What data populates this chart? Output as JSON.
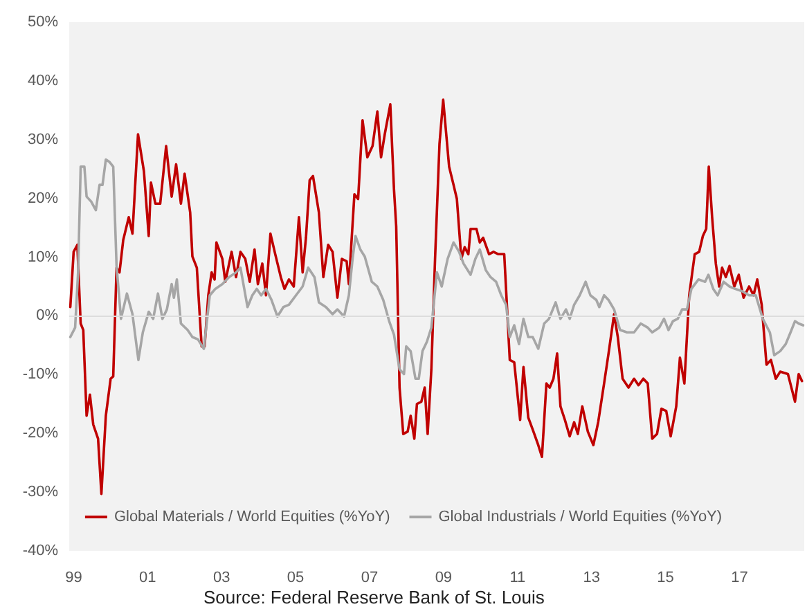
{
  "chart_data": {
    "type": "line",
    "xlim": [
      1998.88,
      2018.75
    ],
    "ylim": [
      -40,
      50
    ],
    "xticks": [
      {
        "value": 1999,
        "label": "99"
      },
      {
        "value": 2001,
        "label": "01"
      },
      {
        "value": 2003,
        "label": "03"
      },
      {
        "value": 2005,
        "label": "05"
      },
      {
        "value": 2007,
        "label": "07"
      },
      {
        "value": 2009,
        "label": "09"
      },
      {
        "value": 2011,
        "label": "11"
      },
      {
        "value": 2013,
        "label": "13"
      },
      {
        "value": 2015,
        "label": "15"
      },
      {
        "value": 2017,
        "label": "17"
      }
    ],
    "yticks": [
      {
        "value": -40,
        "label": "-40%"
      },
      {
        "value": -30,
        "label": "-30%"
      },
      {
        "value": -20,
        "label": "-20%"
      },
      {
        "value": -10,
        "label": "-10%"
      },
      {
        "value": 0,
        "label": "0%"
      },
      {
        "value": 10,
        "label": "10%"
      },
      {
        "value": 20,
        "label": "20%"
      },
      {
        "value": 30,
        "label": "30%"
      },
      {
        "value": 40,
        "label": "40%"
      },
      {
        "value": 50,
        "label": "50%"
      }
    ],
    "grid": false,
    "legend": "bottom",
    "marker": "none",
    "line_style": "solid",
    "ref_lines": [
      {
        "axis": "y",
        "value": 0,
        "color": "#dcdcdc"
      }
    ],
    "annotations": [
      "Source: Federal Reserve Bank of St. Louis"
    ],
    "series": [
      {
        "name": "Global Materials / World Equities (%YoY)",
        "color": "#c00000",
        "x": [
          1998.91,
          1999.0,
          1999.1,
          1999.19,
          1999.26,
          1999.35,
          1999.44,
          1999.53,
          1999.66,
          1999.75,
          1999.87,
          2000.0,
          2000.07,
          2000.16,
          2000.24,
          2000.34,
          2000.49,
          2000.59,
          2000.74,
          2000.9,
          2001.03,
          2001.09,
          2001.21,
          2001.34,
          2001.5,
          2001.65,
          2001.77,
          2001.9,
          2002.0,
          2002.15,
          2002.21,
          2002.33,
          2002.46,
          2002.54,
          2002.64,
          2002.73,
          2002.81,
          2002.86,
          2003.02,
          2003.1,
          2003.27,
          2003.39,
          2003.51,
          2003.64,
          2003.76,
          2003.89,
          2003.98,
          2004.1,
          2004.2,
          2004.32,
          2004.45,
          2004.6,
          2004.7,
          2004.82,
          2004.95,
          2005.09,
          2005.19,
          2005.28,
          2005.38,
          2005.47,
          2005.63,
          2005.75,
          2005.88,
          2006.0,
          2006.13,
          2006.25,
          2006.38,
          2006.44,
          2006.59,
          2006.69,
          2006.81,
          2006.94,
          2007.08,
          2007.21,
          2007.31,
          2007.41,
          2007.56,
          2007.66,
          2007.72,
          2007.81,
          2007.91,
          2008.03,
          2008.11,
          2008.21,
          2008.28,
          2008.4,
          2008.49,
          2008.57,
          2008.67,
          2008.77,
          2008.89,
          2008.99,
          2009.15,
          2009.27,
          2009.36,
          2009.48,
          2009.57,
          2009.67,
          2009.73,
          2009.89,
          2009.98,
          2010.07,
          2010.23,
          2010.35,
          2010.48,
          2010.64,
          2010.79,
          2010.91,
          2011.07,
          2011.16,
          2011.29,
          2011.43,
          2011.56,
          2011.66,
          2011.78,
          2011.87,
          2011.97,
          2012.07,
          2012.16,
          2012.28,
          2012.41,
          2012.53,
          2012.63,
          2012.75,
          2012.9,
          2013.05,
          2013.18,
          2013.34,
          2013.46,
          2013.61,
          2013.71,
          2013.84,
          2014.0,
          2014.15,
          2014.27,
          2014.4,
          2014.52,
          2014.64,
          2014.77,
          2014.89,
          2015.02,
          2015.14,
          2015.29,
          2015.39,
          2015.51,
          2015.64,
          2015.79,
          2015.91,
          2016.01,
          2016.1,
          2016.17,
          2016.26,
          2016.36,
          2016.45,
          2016.53,
          2016.63,
          2016.73,
          2016.86,
          2016.98,
          2017.11,
          2017.26,
          2017.38,
          2017.48,
          2017.6,
          2017.73,
          2017.85,
          2017.98,
          2018.1,
          2018.31,
          2018.5,
          2018.6,
          2018.69
        ],
        "values": [
          1.5,
          10.9,
          12.1,
          -1.3,
          -2.4,
          -17,
          -13.4,
          -18.5,
          -20.9,
          -30.3,
          -17,
          -10.7,
          -10.3,
          8.2,
          7.4,
          12.9,
          16.8,
          14,
          30.9,
          24.6,
          13.6,
          22.7,
          19.1,
          19.1,
          28.9,
          20.3,
          25.8,
          19.1,
          24.2,
          17.6,
          10.1,
          8.2,
          -5.2,
          -5.2,
          3.5,
          7.4,
          6.2,
          12.5,
          9.7,
          5.8,
          10.9,
          6.6,
          10.9,
          9.7,
          5.8,
          11.3,
          5.4,
          8.9,
          3.5,
          14,
          10.5,
          6.6,
          4.6,
          6.2,
          5,
          16.8,
          7.4,
          13.3,
          23.1,
          23.8,
          17.6,
          6.6,
          12.1,
          10.9,
          3.1,
          9.7,
          9.3,
          5.4,
          20.7,
          19.9,
          33.3,
          27,
          28.9,
          34.8,
          27,
          30.9,
          36,
          21.5,
          15.2,
          -12.2,
          -20.1,
          -19.7,
          -17,
          -20.9,
          -15,
          -14.6,
          -12.2,
          -20.1,
          -9.1,
          9.7,
          29.3,
          36.8,
          25.4,
          22.3,
          19.9,
          9.7,
          11.7,
          10.5,
          14.8,
          14.8,
          12.5,
          13.3,
          10.5,
          10.9,
          10.5,
          10.5,
          -7.5,
          -7.9,
          -17.7,
          -8.7,
          -17.3,
          -19.7,
          -22,
          -24,
          -11.5,
          -12.2,
          -10.7,
          -6.4,
          -15.4,
          -17.7,
          -20.5,
          -18.1,
          -20.1,
          -15.4,
          -19.7,
          -22,
          -18.1,
          -11.5,
          -6.4,
          0.3,
          -3.6,
          -10.7,
          -12.2,
          -10.7,
          -11.8,
          -10.7,
          -11.5,
          -20.9,
          -20.1,
          -15.8,
          -16.2,
          -20.5,
          -15.4,
          -7.1,
          -11.5,
          3.5,
          10.5,
          10.9,
          13.6,
          14.8,
          25.4,
          16.8,
          8.9,
          5,
          8.2,
          6.6,
          8.5,
          5,
          7,
          3.1,
          5,
          3.5,
          6.2,
          1.9,
          -8.3,
          -7.5,
          -10.7,
          -9.5,
          -9.9,
          -14.6,
          -9.9,
          -11.1
        ]
      },
      {
        "name": "Global Industrials / World Equities (%YoY)",
        "color": "#a6a6a6",
        "x": [
          1998.91,
          1999.04,
          1999.12,
          1999.19,
          1999.29,
          1999.35,
          1999.47,
          1999.6,
          1999.7,
          1999.78,
          1999.87,
          1999.97,
          2000.07,
          2000.16,
          2000.28,
          2000.44,
          2000.59,
          2000.75,
          2000.87,
          2001.03,
          2001.15,
          2001.28,
          2001.4,
          2001.52,
          2001.65,
          2001.71,
          2001.79,
          2001.9,
          2002.08,
          2002.21,
          2002.36,
          2002.52,
          2002.68,
          2002.83,
          2003.02,
          2003.2,
          2003.39,
          2003.51,
          2003.7,
          2003.83,
          2003.95,
          2004.07,
          2004.2,
          2004.35,
          2004.51,
          2004.67,
          2004.82,
          2005.01,
          2005.19,
          2005.34,
          2005.51,
          2005.63,
          2005.82,
          2006.0,
          2006.13,
          2006.31,
          2006.44,
          2006.54,
          2006.62,
          2006.75,
          2006.87,
          2007.06,
          2007.21,
          2007.37,
          2007.53,
          2007.66,
          2007.81,
          2007.93,
          2007.99,
          2008.11,
          2008.24,
          2008.33,
          2008.43,
          2008.55,
          2008.67,
          2008.82,
          2008.95,
          2009.11,
          2009.27,
          2009.42,
          2009.54,
          2009.73,
          2009.86,
          2009.98,
          2010.14,
          2010.27,
          2010.42,
          2010.56,
          2010.69,
          2010.79,
          2010.91,
          2011.04,
          2011.16,
          2011.29,
          2011.41,
          2011.56,
          2011.72,
          2011.85,
          2012.03,
          2012.16,
          2012.31,
          2012.41,
          2012.53,
          2012.68,
          2012.84,
          2012.97,
          2013.13,
          2013.21,
          2013.34,
          2013.46,
          2013.61,
          2013.77,
          2013.96,
          2014.15,
          2014.33,
          2014.52,
          2014.64,
          2014.83,
          2014.96,
          2015.08,
          2015.2,
          2015.33,
          2015.45,
          2015.58,
          2015.7,
          2015.89,
          2016.07,
          2016.16,
          2016.29,
          2016.41,
          2016.57,
          2016.73,
          2016.88,
          2017.07,
          2017.26,
          2017.44,
          2017.63,
          2017.82,
          2017.94,
          2018.1,
          2018.25,
          2018.38,
          2018.5,
          2018.6,
          2018.72
        ],
        "values": [
          -3.6,
          -2,
          7.4,
          25.4,
          25.4,
          20.3,
          19.5,
          18,
          22.3,
          22.3,
          26.6,
          26.2,
          25.4,
          8.5,
          -0.5,
          3.8,
          0.3,
          -7.5,
          -2.8,
          0.7,
          -0.5,
          3.8,
          -0.5,
          1.1,
          5.4,
          3.1,
          6.2,
          -1.3,
          -2.4,
          -3.6,
          -4,
          -5.6,
          3.5,
          4.6,
          5.4,
          6.6,
          7.4,
          8.2,
          1.5,
          3.5,
          4.6,
          3.5,
          4.6,
          2.7,
          -0.1,
          1.5,
          1.9,
          3.5,
          5,
          8.2,
          6.6,
          2.3,
          1.5,
          0.3,
          1.1,
          -0.1,
          3.5,
          9.7,
          13.6,
          11.3,
          10.1,
          5.8,
          5,
          2.7,
          -0.9,
          -3.2,
          -9.1,
          -9.9,
          -5.2,
          -6,
          -10.7,
          -10.7,
          -6,
          -4.4,
          -2,
          7.4,
          5,
          9.7,
          12.5,
          10.9,
          8.9,
          7,
          9.7,
          11.3,
          7.8,
          6.6,
          5.8,
          3.5,
          1.9,
          -3.6,
          -1.6,
          -4.8,
          -0.5,
          -3.6,
          -3.6,
          -5.6,
          -1.3,
          -0.5,
          2.3,
          -0.5,
          1.1,
          -0.5,
          1.9,
          3.5,
          5.8,
          3.5,
          2.7,
          1.5,
          3.5,
          2.7,
          1.1,
          -2.4,
          -2.8,
          -2.8,
          -1.3,
          -2,
          -2.8,
          -2,
          -0.5,
          -2.4,
          -0.9,
          -0.5,
          1.1,
          1.1,
          4.6,
          6.2,
          5.8,
          7,
          4.6,
          3.5,
          5.8,
          5,
          4.6,
          4.2,
          3.5,
          3.5,
          -0.5,
          -2.8,
          -6.7,
          -6,
          -4.8,
          -2.8,
          -0.9,
          -1.3,
          -1.6
        ]
      }
    ]
  }
}
